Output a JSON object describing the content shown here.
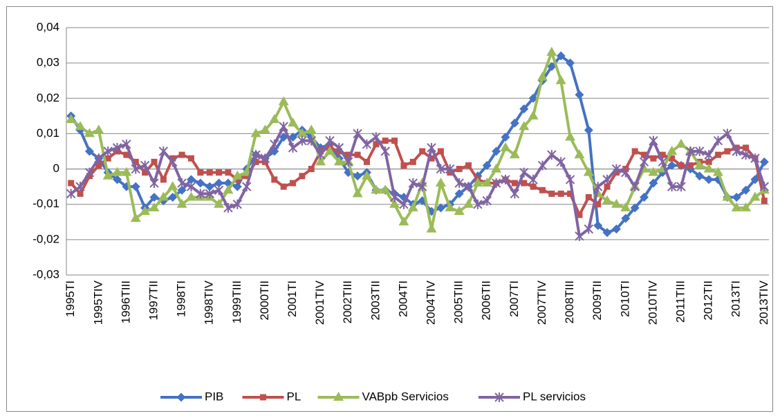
{
  "chart_data": {
    "type": "line",
    "categories": [
      "1995TI",
      null,
      null,
      "1995TIV",
      null,
      null,
      "1996TIII",
      null,
      null,
      "1997TII",
      null,
      null,
      "1998TI",
      null,
      null,
      "1998TIV",
      null,
      null,
      "1999TIII",
      null,
      null,
      "2000TII",
      null,
      null,
      "2001TI",
      null,
      null,
      "2001TIV",
      null,
      null,
      "2002TIII",
      null,
      null,
      "2003TII",
      null,
      null,
      "2004TI",
      null,
      null,
      "2004TIV",
      null,
      null,
      "2005TIII",
      null,
      null,
      "2006TII",
      null,
      null,
      "2007TI",
      null,
      null,
      "2007TIV",
      null,
      null,
      "2008TIII",
      null,
      null,
      "2009TII",
      null,
      null,
      "2010TI",
      null,
      null,
      "2010TIV",
      null,
      null,
      "2011TIII",
      null,
      null,
      "2012TII",
      null,
      null,
      "2013TI",
      null,
      null,
      "2013TIV"
    ],
    "series": [
      {
        "name": "PIB",
        "color": "#4472C4",
        "marker": "diamond",
        "values": [
          0.015,
          0.011,
          0.005,
          0.003,
          -0.001,
          -0.003,
          -0.005,
          -0.005,
          -0.011,
          -0.008,
          -0.009,
          -0.008,
          -0.006,
          -0.003,
          -0.004,
          -0.005,
          -0.004,
          -0.004,
          -0.005,
          0.0,
          0.004,
          0.003,
          0.005,
          0.009,
          0.009,
          0.011,
          0.009,
          0.006,
          0.007,
          0.003,
          -0.001,
          -0.002,
          -0.001,
          -0.006,
          -0.006,
          -0.007,
          -0.008,
          -0.01,
          -0.009,
          -0.012,
          -0.011,
          -0.01,
          -0.007,
          -0.005,
          -0.002,
          0.001,
          0.005,
          0.009,
          0.013,
          0.017,
          0.02,
          0.025,
          0.029,
          0.032,
          0.03,
          0.021,
          0.011,
          -0.016,
          -0.018,
          -0.017,
          -0.014,
          -0.011,
          -0.008,
          -0.004,
          -0.001,
          0.001,
          0.001,
          0.0,
          -0.002,
          -0.003,
          -0.003,
          -0.008,
          -0.008,
          -0.006,
          -0.003,
          0.002
        ]
      },
      {
        "name": "PL",
        "color": "#C0504D",
        "marker": "square",
        "values": [
          -0.004,
          -0.007,
          -0.002,
          0.001,
          0.003,
          0.005,
          0.004,
          0.002,
          -0.001,
          0.002,
          -0.003,
          0.003,
          0.004,
          0.003,
          -0.001,
          -0.001,
          -0.001,
          -0.001,
          -0.003,
          -0.002,
          0.002,
          0.002,
          -0.003,
          -0.005,
          -0.004,
          -0.002,
          0.0,
          0.005,
          0.006,
          0.005,
          0.004,
          0.004,
          0.002,
          0.007,
          0.008,
          0.008,
          0.001,
          0.002,
          0.005,
          0.003,
          0.005,
          -0.001,
          0.0,
          0.001,
          -0.003,
          -0.004,
          -0.004,
          -0.003,
          -0.004,
          -0.004,
          -0.005,
          -0.006,
          -0.007,
          -0.007,
          -0.007,
          -0.013,
          -0.008,
          -0.01,
          -0.005,
          -0.001,
          0.0,
          0.005,
          0.004,
          0.003,
          0.004,
          0.003,
          0.001,
          0.001,
          0.002,
          0.002,
          0.004,
          0.005,
          0.006,
          0.006,
          0.003,
          -0.009
        ]
      },
      {
        "name": "VABpb Servicios",
        "color": "#9BBB59",
        "marker": "triangle",
        "values": [
          0.014,
          0.012,
          0.01,
          0.011,
          -0.002,
          -0.001,
          -0.001,
          -0.014,
          -0.012,
          -0.011,
          -0.008,
          -0.005,
          -0.01,
          -0.008,
          -0.008,
          -0.008,
          -0.01,
          -0.006,
          -0.002,
          -0.001,
          0.01,
          0.011,
          0.014,
          0.019,
          0.013,
          0.01,
          0.011,
          0.002,
          0.005,
          0.002,
          0.002,
          -0.007,
          -0.002,
          -0.006,
          -0.006,
          -0.01,
          -0.015,
          -0.011,
          -0.004,
          -0.017,
          -0.004,
          -0.011,
          -0.012,
          -0.01,
          -0.004,
          -0.004,
          0.0,
          0.006,
          0.004,
          0.012,
          0.015,
          0.026,
          0.033,
          0.025,
          0.009,
          0.004,
          -0.001,
          -0.007,
          -0.009,
          -0.01,
          -0.011,
          -0.005,
          0.0,
          -0.001,
          0.0,
          0.005,
          0.007,
          0.005,
          0.001,
          0.0,
          -0.001,
          -0.008,
          -0.011,
          -0.011,
          -0.008,
          -0.006
        ]
      },
      {
        "name": "PL servicios",
        "color": "#8064A2",
        "marker": "star",
        "values": [
          -0.007,
          -0.005,
          -0.001,
          0.003,
          0.005,
          0.006,
          0.007,
          0.0,
          0.001,
          -0.004,
          0.005,
          0.002,
          -0.004,
          -0.005,
          -0.007,
          -0.007,
          -0.006,
          -0.011,
          -0.01,
          -0.005,
          0.004,
          0.003,
          0.007,
          0.012,
          0.006,
          0.008,
          0.008,
          0.004,
          0.008,
          0.006,
          0.002,
          0.01,
          0.007,
          0.009,
          0.005,
          -0.008,
          -0.01,
          -0.004,
          -0.005,
          0.006,
          0.0,
          0.0,
          -0.004,
          -0.005,
          -0.01,
          -0.009,
          -0.004,
          -0.003,
          -0.007,
          -0.001,
          -0.003,
          0.001,
          0.004,
          0.002,
          -0.003,
          -0.019,
          -0.017,
          -0.005,
          -0.003,
          0.0,
          -0.001,
          -0.005,
          0.002,
          0.008,
          0.002,
          -0.005,
          -0.005,
          0.005,
          0.005,
          0.004,
          0.008,
          0.01,
          0.005,
          0.004,
          0.003,
          -0.005
        ]
      }
    ],
    "ylim": [
      -0.03,
      0.04
    ],
    "yticks": [
      {
        "value": -0.03,
        "label": "-0,03"
      },
      {
        "value": -0.02,
        "label": "-0,02"
      },
      {
        "value": -0.01,
        "label": "-0,01"
      },
      0,
      {
        "value": 0.01,
        "label": "0,01"
      },
      {
        "value": 0.02,
        "label": "0,02"
      },
      {
        "value": 0.03,
        "label": "0,03"
      },
      {
        "value": 0.04,
        "label": "0,04"
      }
    ],
    "grid": true,
    "legend": "bottom"
  }
}
